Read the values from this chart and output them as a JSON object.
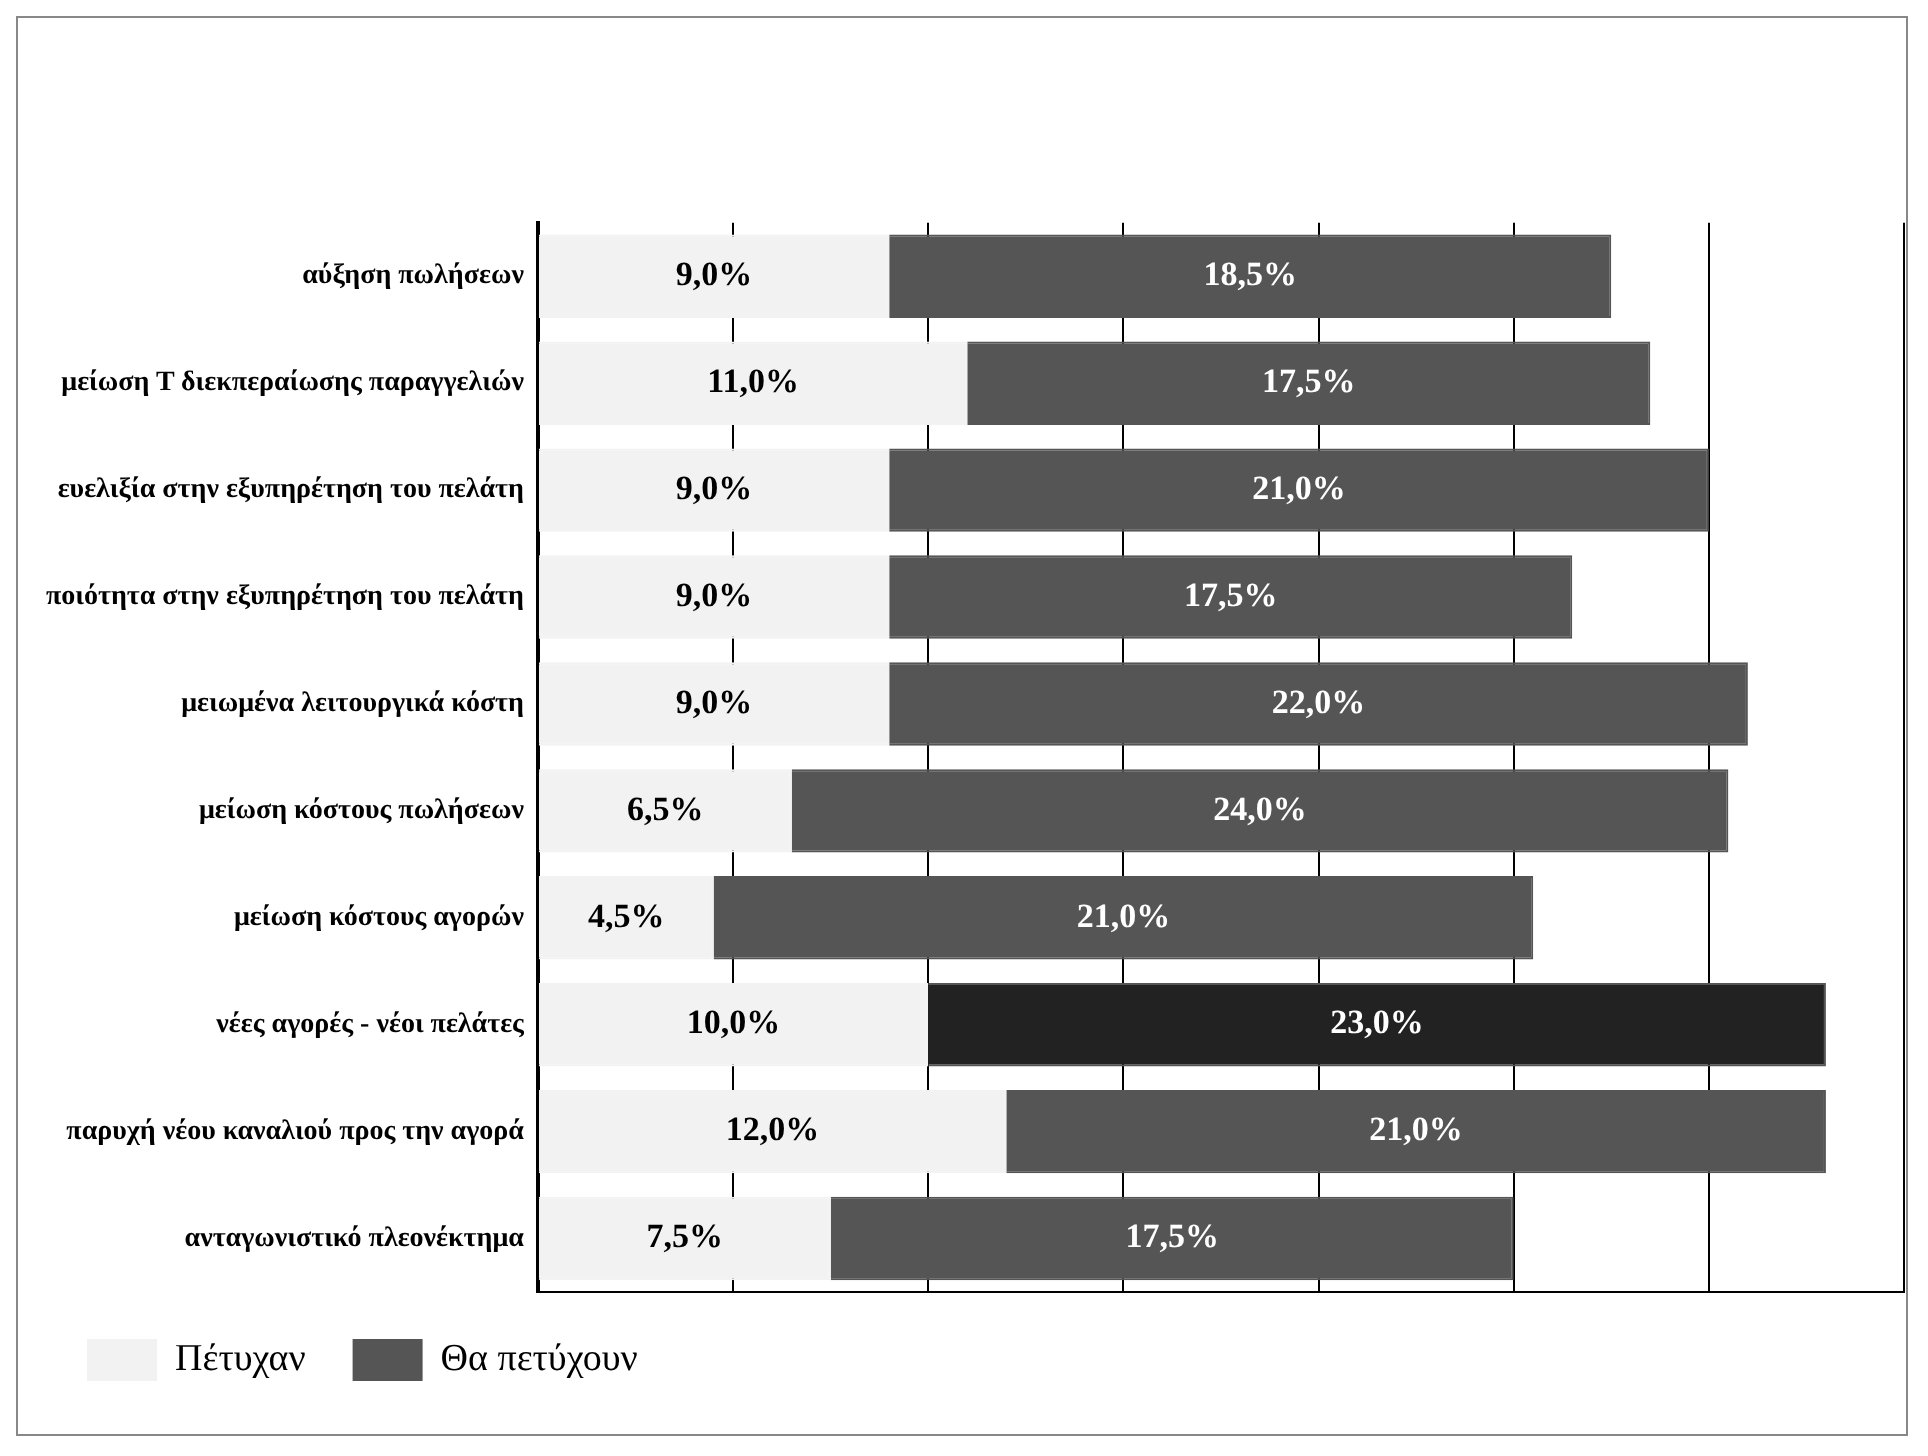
{
  "chart_data": {
    "type": "bar",
    "orientation": "horizontal",
    "stacked": true,
    "categories": [
      "αύξηση πωλήσεων",
      "μείωση Τ διεκπεραίωσης παραγγελιών",
      "ευελιξία στην εξυπηρέτηση του πελάτη",
      "ποιότητα στην εξυπηρέτηση του πελάτη",
      "μειωμένα λειτουργικά κόστη",
      "μείωση κόστους πωλήσεων",
      "μείωση κόστους αγορών",
      "νέες αγορές - νέοι πελάτες",
      "παρυχή νέου καναλιού προς την αγορά",
      "ανταγωνιστικό πλεονέκτημα"
    ],
    "series": [
      {
        "name": "Πέτυχαν",
        "color": "#f2f2f2",
        "values": [
          9.0,
          11.0,
          9.0,
          9.0,
          9.0,
          6.5,
          4.5,
          10.0,
          12.0,
          7.5
        ],
        "value_labels": [
          "9,0%",
          "11,0%",
          "9,0%",
          "9,0%",
          "9,0%",
          "6,5%",
          "4,5%",
          "10,0%",
          "12,0%",
          "7,5%"
        ]
      },
      {
        "name": "Θα πετύχουν",
        "color": "#555555",
        "colors": [
          "#555555",
          "#555555",
          "#555555",
          "#555555",
          "#555555",
          "#555555",
          "#555555",
          "#222222",
          "#555555",
          "#555555"
        ],
        "values": [
          18.5,
          17.5,
          21.0,
          17.5,
          22.0,
          24.0,
          21.0,
          23.0,
          21.0,
          17.5
        ],
        "value_labels": [
          "18,5%",
          "17,5%",
          "21,0%",
          "17,5%",
          "22,0%",
          "24,0%",
          "21,0%",
          "23,0%",
          "21,0%",
          "17,5%"
        ]
      }
    ],
    "xlim": [
      0,
      35
    ],
    "xticks": [
      {
        "value": 0,
        "label": null
      },
      {
        "value": 5,
        "label": null
      },
      {
        "value": 10,
        "label": null
      },
      {
        "value": 15,
        "label": null
      },
      {
        "value": 20,
        "label": null
      },
      {
        "value": 25,
        "label": null
      },
      {
        "value": 30,
        "label": null
      },
      {
        "value": 35,
        "label": null
      }
    ],
    "tick_labels": "y",
    "grid": "x",
    "legend": "bottom left"
  }
}
